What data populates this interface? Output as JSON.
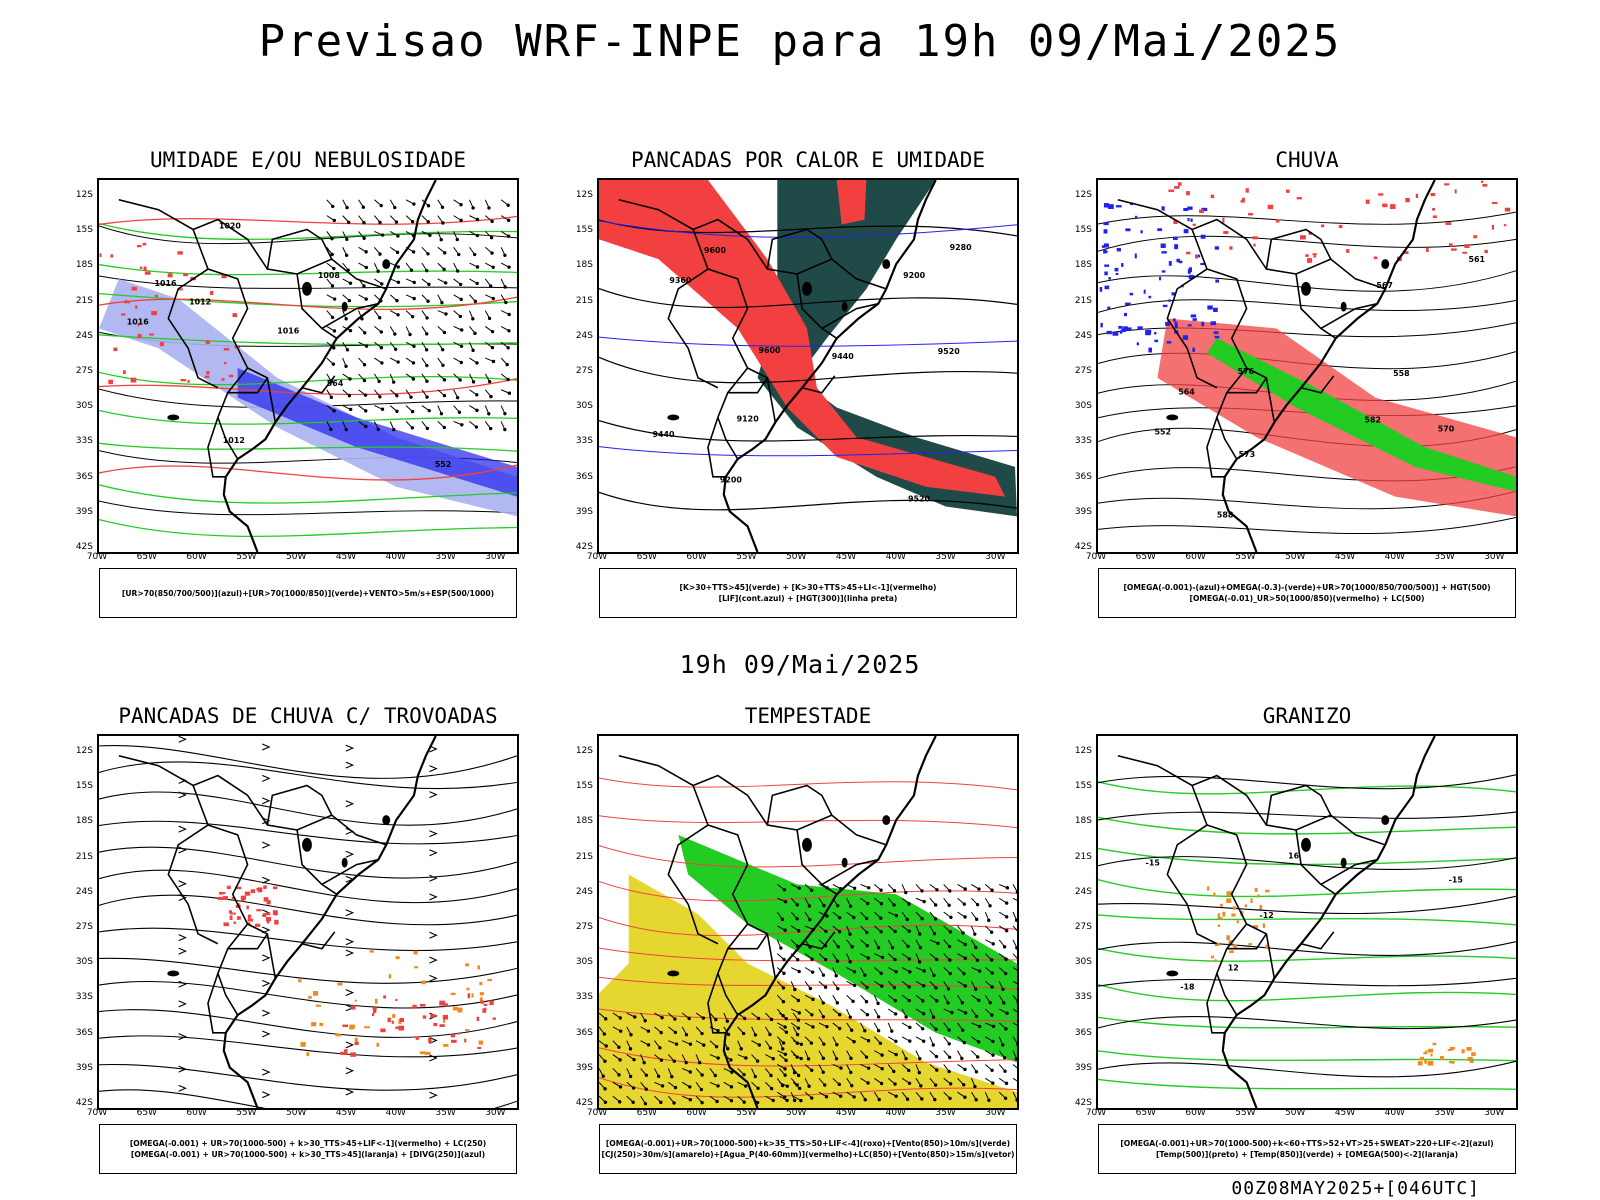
{
  "header": {
    "title": "Previsao WRF-INPE  para 19h 09/Mai/2025",
    "mid_title": "19h 09/Mai/2025",
    "footer": "00Z08MAY2025+[046UTC]"
  },
  "axes": {
    "lat_labels": [
      "12S",
      "15S",
      "18S",
      "21S",
      "24S",
      "27S",
      "30S",
      "33S",
      "36S",
      "39S",
      "42S"
    ],
    "lon_labels": [
      "70W",
      "65W",
      "60W",
      "55W",
      "50W",
      "45W",
      "40W",
      "35W",
      "30W"
    ]
  },
  "panels": [
    {
      "title": "UMIDADE E/OU NEBULOSIDADE",
      "legend": [
        "[UR>70(850/700/500)](azul)+[UR>70(1000/850)](verde)+VENTO>5m/s+ESP(500/1000)"
      ],
      "contour_labels": [
        "1012",
        "1016",
        "1016",
        "1020",
        "1012",
        "1008",
        "1016",
        "564",
        "552"
      ]
    },
    {
      "title": "PANCADAS POR CALOR E UMIDADE",
      "legend": [
        "[K>30+TTS>45](verde) + [K>30+TTS>45+LI<-1](vermelho)",
        "[LIF](cont.azul) + [HGT(300)](linha preta)"
      ],
      "contour_labels": [
        "9600",
        "9520",
        "9600",
        "9520",
        "9440",
        "9360",
        "9440",
        "9200",
        "9120",
        "9280",
        "9200"
      ]
    },
    {
      "title": "CHUVA",
      "legend": [
        "[OMEGA(-0.001)-(azul)+OMEGA(-0.3)-(verde)+UR>70(1000/850/700/500)] + HGT(500)",
        "[OMEGA(-0.01)_UR>50(1000/850)(vermelho) + LC(500)"
      ],
      "contour_labels": [
        "588",
        "582",
        "576",
        "573",
        "570",
        "567",
        "564",
        "561",
        "558",
        "552"
      ]
    },
    {
      "title": "PANCADAS DE CHUVA C/ TROVOADAS",
      "legend": [
        "[OMEGA(-0.001) + UR>70(1000-500) + k>30_TTS>45+LIF<-1](vermelho) + LC(250)",
        "[OMEGA(-0.001) + UR>70(1000-500) + k>30_TTS>45](laranja) + [DIVG(250)](azul)"
      ],
      "contour_labels": []
    },
    {
      "title": "TEMPESTADE",
      "legend": [
        "[OMEGA(-0.001)+UR>70(1000-500)+k>35_TTS>50+LIF<-4](roxo)+[Vento(850)>10m/s](verde)",
        "[CJ(250)>30m/s](amarelo)+[Agua_P(40-60mm)](vermelho)+LC(850)+[Vento(850)>15m/s](vetor)"
      ],
      "contour_labels": []
    },
    {
      "title": "GRANIZO",
      "legend": [
        "[OMEGA(-0.001)+UR>70(1000-500)+k<60+TTS>52+VT>25+SWEAT>220+LIF<-2](azul)",
        "[Temp(500)](preto) + [Temp(850)](verde) + [OMEGA(500)<-2](laranja)"
      ],
      "contour_labels": [
        "-12",
        "-15",
        "-18",
        "-15",
        "12",
        "16"
      ]
    }
  ],
  "colors": {
    "red": "#f24040",
    "green": "#22cc22",
    "blue": "#2222ee",
    "lightblue": "#aab0f0",
    "darkteal": "#1f4a48",
    "yellow": "#e6d630",
    "orange": "#f08a20"
  }
}
